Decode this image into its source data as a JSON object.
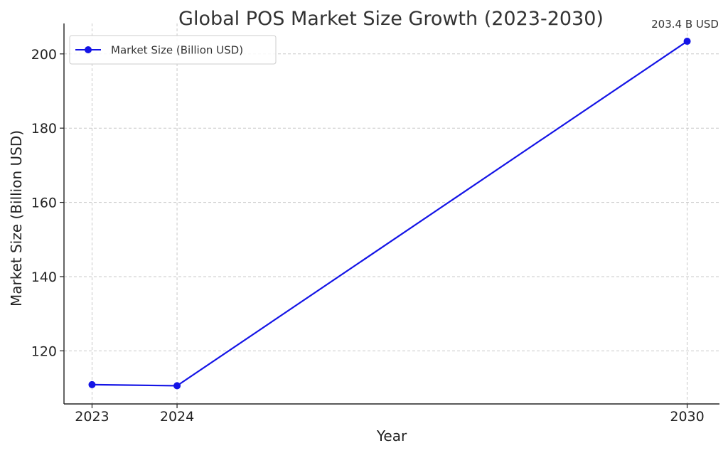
{
  "chart_data": {
    "type": "line",
    "title": "Global POS Market Size Growth (2023-2030)",
    "xlabel": "Year",
    "ylabel": "Market Size (Billion USD)",
    "x": [
      2023,
      2024,
      2030
    ],
    "x_tick_labels": [
      "2023",
      "2024",
      "2030"
    ],
    "xlim": [
      2022.67,
      2030.38
    ],
    "ylim": [
      105.7,
      208.2
    ],
    "y_ticks": [
      120,
      140,
      160,
      180,
      200
    ],
    "grid": true,
    "legend_position": "upper-left",
    "series": [
      {
        "name": "Market Size (Billion USD)",
        "values": [
          110.9,
          110.6,
          203.4
        ],
        "color": "#1414e6",
        "marker": "circle"
      }
    ],
    "annotations": [
      {
        "series_index": 0,
        "point_index": 2,
        "text": "203.4 B USD"
      }
    ]
  }
}
